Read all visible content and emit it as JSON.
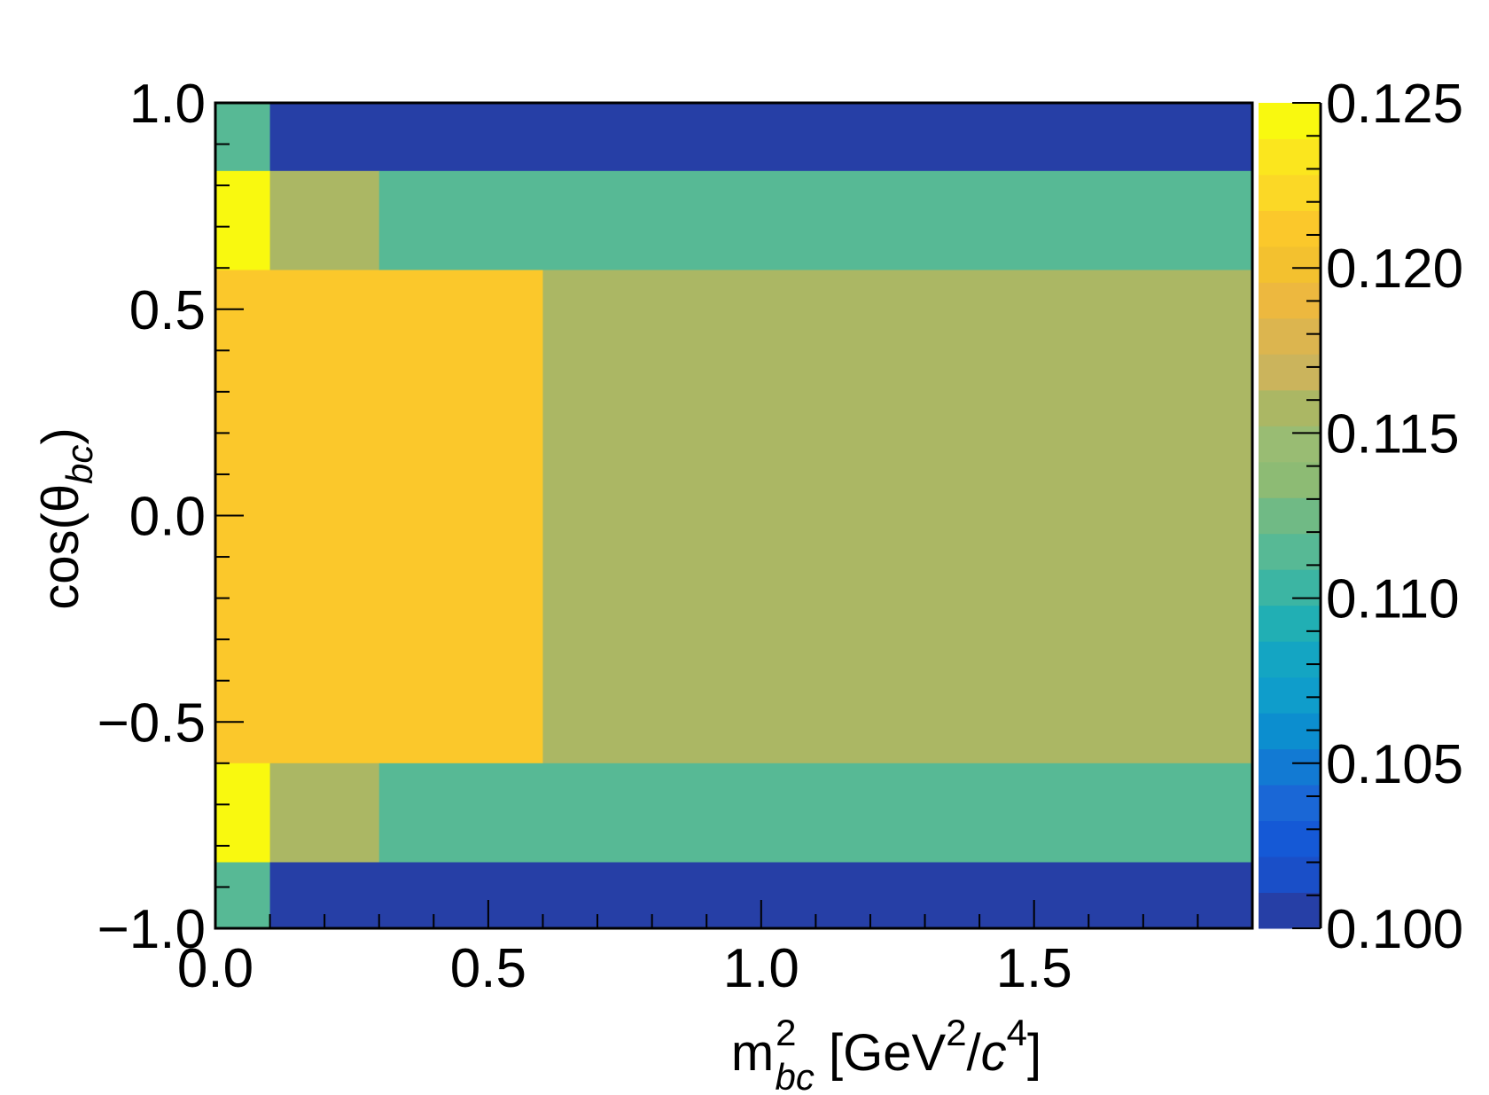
{
  "chart_data": {
    "type": "heatmap",
    "title": "",
    "xlabel": {
      "base": "m",
      "sup": "2",
      "sub": "bc",
      "unit_open": " [GeV",
      "unit_sup1": "2",
      "unit_slash": "/",
      "unit_c": "c",
      "unit_sup2": "4",
      "unit_close": "]"
    },
    "ylabel": {
      "prefix": "cos(θ",
      "sub": "bc",
      "suffix": ")"
    },
    "xlim": [
      0.0,
      1.9
    ],
    "ylim": [
      -1.0,
      1.0
    ],
    "zlim": [
      0.1,
      0.125
    ],
    "x_ticks": [
      "0.0",
      "0.5",
      "1.0",
      "1.5"
    ],
    "x_tick_values": [
      0.0,
      0.5,
      1.0,
      1.5
    ],
    "y_ticks": [
      "1.0",
      "0.5",
      "0.0",
      "−0.5",
      "−1.0"
    ],
    "y_tick_values": [
      1.0,
      0.5,
      0.0,
      -0.5,
      -1.0
    ],
    "z_ticks": [
      "0.125",
      "0.120",
      "0.115",
      "0.110",
      "0.105",
      "0.100"
    ],
    "z_tick_values": [
      0.125,
      0.12,
      0.115,
      0.11,
      0.105,
      0.1
    ],
    "cells": [
      {
        "x": [
          0.0,
          0.1
        ],
        "y": [
          0.835,
          1.0
        ],
        "z": 0.111
      },
      {
        "x": [
          0.1,
          1.9
        ],
        "y": [
          0.835,
          1.0
        ],
        "z": 0.1
      },
      {
        "x": [
          0.0,
          0.1
        ],
        "y": [
          0.595,
          0.835
        ],
        "z": 0.125
      },
      {
        "x": [
          0.1,
          0.3
        ],
        "y": [
          0.595,
          0.835
        ],
        "z": 0.116
      },
      {
        "x": [
          0.3,
          1.9
        ],
        "y": [
          0.595,
          0.835
        ],
        "z": 0.111
      },
      {
        "x": [
          0.0,
          0.6
        ],
        "y": [
          -0.6,
          0.595
        ],
        "z": 0.121
      },
      {
        "x": [
          0.6,
          1.9
        ],
        "y": [
          -0.6,
          0.595
        ],
        "z": 0.116
      },
      {
        "x": [
          0.0,
          0.1
        ],
        "y": [
          -0.84,
          -0.6
        ],
        "z": 0.125
      },
      {
        "x": [
          0.1,
          0.3
        ],
        "y": [
          -0.84,
          -0.6
        ],
        "z": 0.116
      },
      {
        "x": [
          0.3,
          1.9
        ],
        "y": [
          -0.84,
          -0.6
        ],
        "z": 0.111
      },
      {
        "x": [
          0.0,
          0.1
        ],
        "y": [
          -1.0,
          -0.84
        ],
        "z": 0.111
      },
      {
        "x": [
          0.1,
          1.9
        ],
        "y": [
          -1.0,
          -0.84
        ],
        "z": 0.1
      }
    ],
    "palette": [
      "#263fa6",
      "#1a4fc8",
      "#1559d6",
      "#1a67d6",
      "#127ad3",
      "#0c8ecf",
      "#0f9dcb",
      "#14a5c3",
      "#21afb4",
      "#3cb5a3",
      "#57b995",
      "#70ba85",
      "#8dbb74",
      "#99bc73",
      "#abb764",
      "#cbb45c",
      "#dcb54f",
      "#edb83f",
      "#f3c12f",
      "#fbc82b",
      "#fbd826",
      "#fbe61e",
      "#f9f90f"
    ],
    "grid": false,
    "colorbar": "right"
  }
}
